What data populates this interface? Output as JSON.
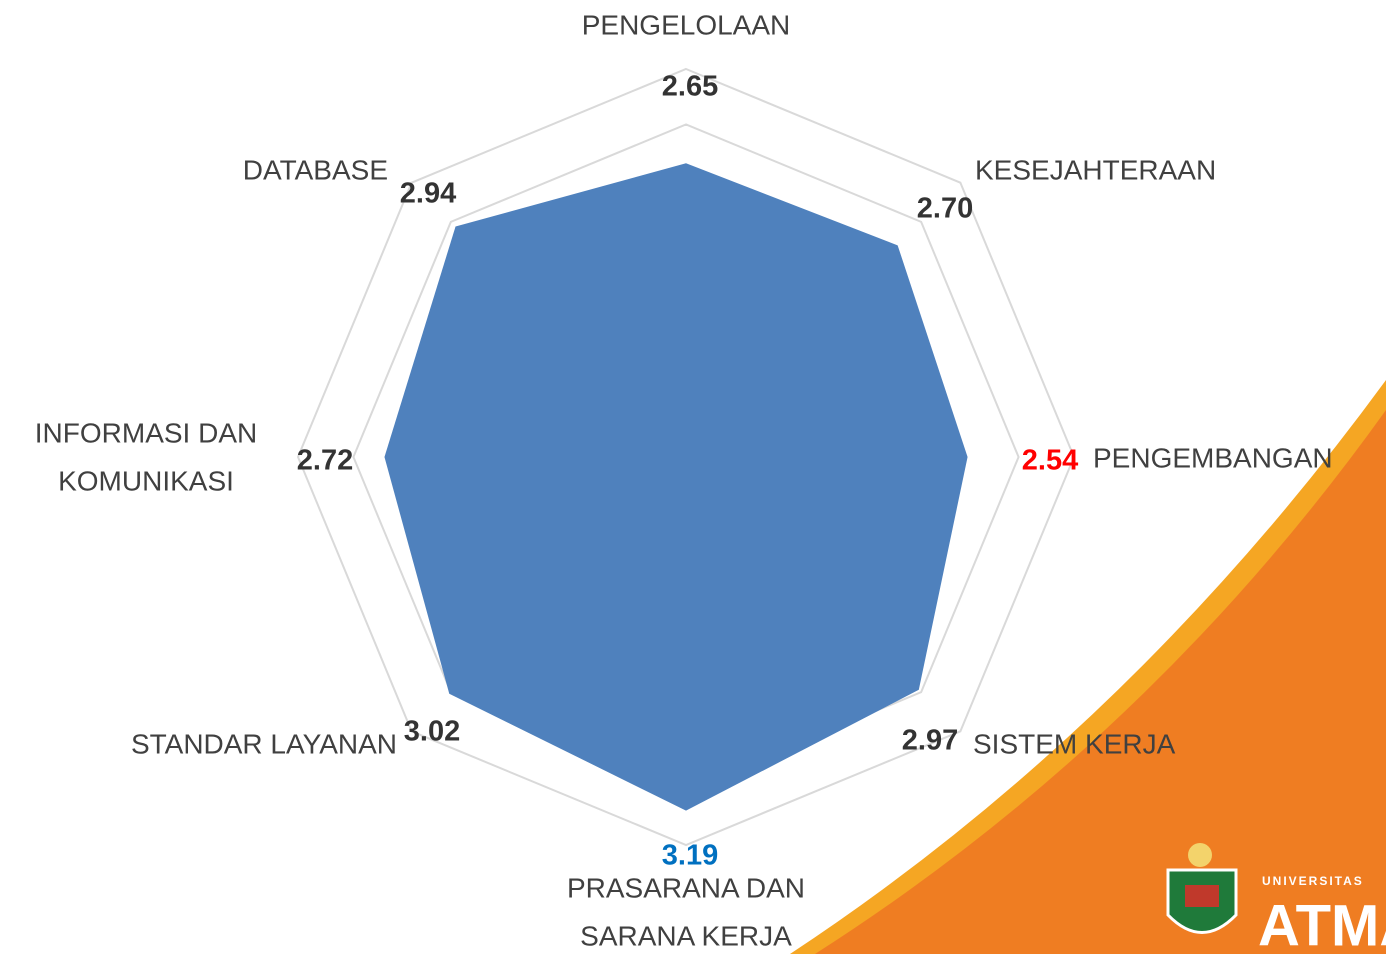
{
  "chart_data": {
    "type": "radar",
    "categories": [
      [
        "PENGELOLAAN"
      ],
      [
        "KESEJAHTERAAN"
      ],
      [
        "PENGEMBANGAN"
      ],
      [
        "SISTEM KERJA"
      ],
      [
        "PRASARANA DAN",
        "SARANA KERJA"
      ],
      [
        "STANDAR LAYANAN"
      ],
      [
        "INFORMASI DAN",
        "KOMUNIKASI"
      ],
      [
        "DATABASE"
      ]
    ],
    "series": [
      {
        "color": "#4f81bd",
        "values": [
          2.65,
          2.7,
          2.54,
          2.97,
          3.19,
          3.02,
          2.72,
          2.94
        ],
        "value_labels": [
          "2.65",
          "2.70",
          "2.54",
          "2.97",
          "3.19",
          "3.02",
          "2.72",
          "2.94"
        ],
        "value_label_colors": [
          "#333333",
          "#333333",
          "#ff0000",
          "#333333",
          "#0070c0",
          "#333333",
          "#333333",
          "#333333"
        ]
      }
    ],
    "ylim": [
      0,
      3.5
    ],
    "yticks": [
      0.5,
      1,
      1.5,
      2,
      2.5,
      3,
      3.5
    ],
    "grid": true
  },
  "branding": {
    "line1": "UNIVERSITAS",
    "line2": "ATMA"
  }
}
